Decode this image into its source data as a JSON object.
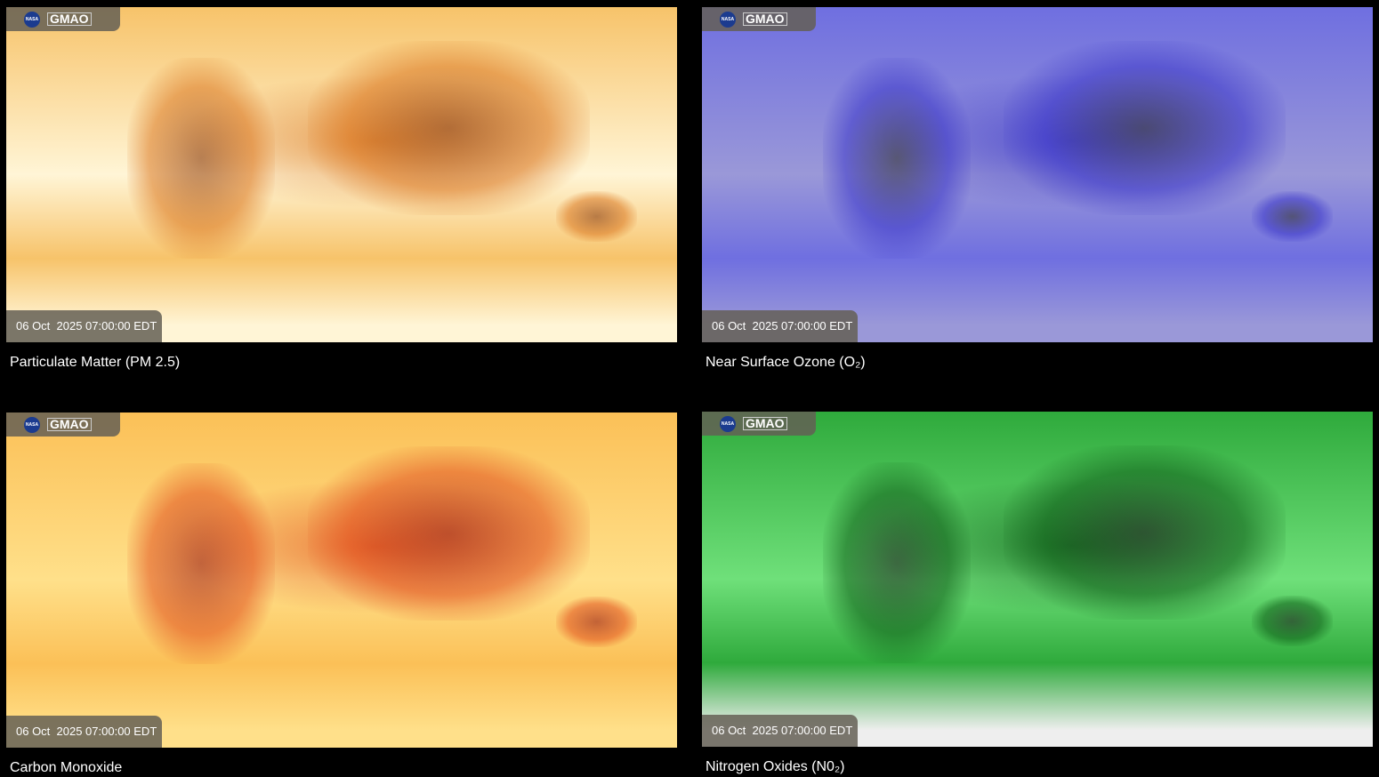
{
  "logo": {
    "agency": "NASA",
    "label": "GMAO"
  },
  "panels": [
    {
      "title": "Particulate Matter (PM 2.5)",
      "timestamp": "06 Oct  2025 07:00:00 EDT",
      "colors": [
        "#fff5d6",
        "#f7c36a",
        "#d9721a",
        "#8a3a0a"
      ]
    },
    {
      "title": "Near Surface Ozone (O₂)",
      "timestamp": "06 Oct  2025 07:00:00 EDT",
      "colors": [
        "#9a98d8",
        "#6f6fe0",
        "#3a35c8",
        "#333333"
      ]
    },
    {
      "title": "Carbon Monoxide",
      "timestamp": "06 Oct  2025 07:00:00 EDT",
      "colors": [
        "#ffe08a",
        "#fbc057",
        "#e04a1a",
        "#9b1a10"
      ]
    },
    {
      "title": "Nitrogen Oxides (N0₂)",
      "timestamp": "06 Oct  2025 07:00:00 EDT",
      "colors": [
        "#6fe07a",
        "#2faa3c",
        "#0d5a16",
        "#222222"
      ]
    }
  ]
}
